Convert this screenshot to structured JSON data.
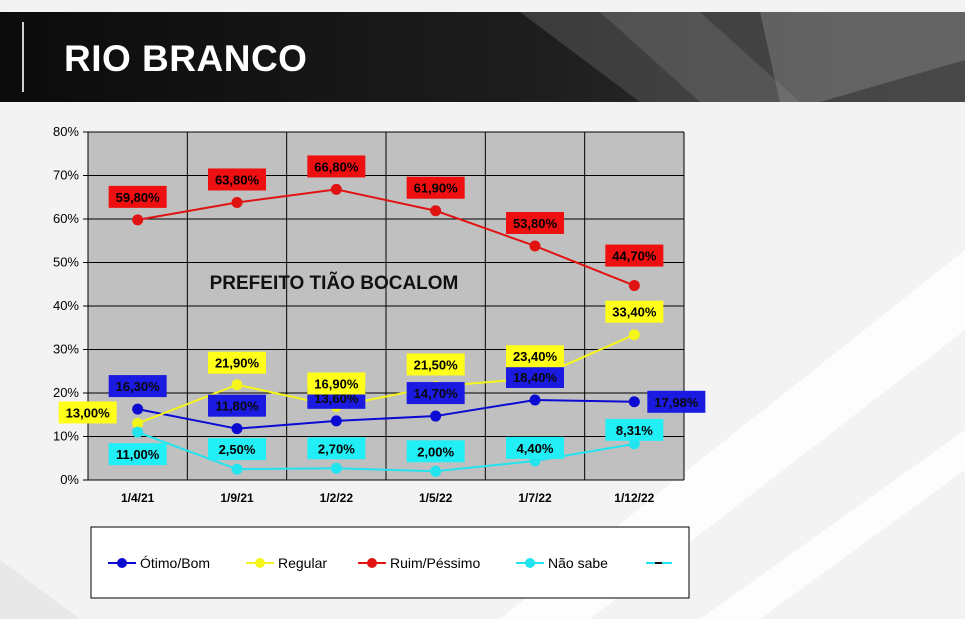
{
  "header": {
    "title": "RIO BRANCO"
  },
  "chart_data": {
    "type": "line",
    "categories": [
      "1/4/21",
      "1/9/21",
      "1/2/22",
      "1/5/22",
      "1/7/22",
      "1/12/22"
    ],
    "yticks": [
      "0%",
      "10%",
      "20%",
      "30%",
      "40%",
      "50%",
      "60%",
      "70%",
      "80%"
    ],
    "ylim": [
      0,
      80
    ],
    "grid": true,
    "annotation": "PREFEITO TIÃO BOCALOM",
    "legend_position": "bottom",
    "series": [
      {
        "name": "Ótimo/Bom",
        "color": "#0a0ad2",
        "label_bg": "#1a1ae0",
        "label_fg": "#0a0a0a",
        "values": [
          16.3,
          11.8,
          13.6,
          14.7,
          18.4,
          17.98
        ],
        "labels": [
          "16,30%",
          "11,80%",
          "13,60%",
          "14,70%",
          "18,40%",
          "17,98%"
        ]
      },
      {
        "name": "Regular",
        "color": "#f5f51a",
        "label_bg": "#ffff1a",
        "label_fg": "#000000",
        "values": [
          13.0,
          21.9,
          16.9,
          21.5,
          23.4,
          33.4
        ],
        "labels": [
          "13,00%",
          "21,90%",
          "16,90%",
          "21,50%",
          "23,40%",
          "33,40%"
        ]
      },
      {
        "name": "Ruim/Péssimo",
        "color": "#e01212",
        "label_bg": "#ee1010",
        "label_fg": "#000000",
        "values": [
          59.8,
          63.8,
          66.8,
          61.9,
          53.8,
          44.7
        ],
        "labels": [
          "59,80%",
          "63,80%",
          "66,80%",
          "61,90%",
          "53,80%",
          "44,70%"
        ]
      },
      {
        "name": "Não sabe",
        "color": "#22e4ee",
        "label_bg": "#22eef5",
        "label_fg": "#000000",
        "values": [
          11.0,
          2.5,
          2.7,
          2.0,
          4.4,
          8.31
        ],
        "labels": [
          "11,00%",
          "2,50%",
          "2,70%",
          "2,00%",
          "4,40%",
          "8,31%"
        ]
      }
    ]
  }
}
